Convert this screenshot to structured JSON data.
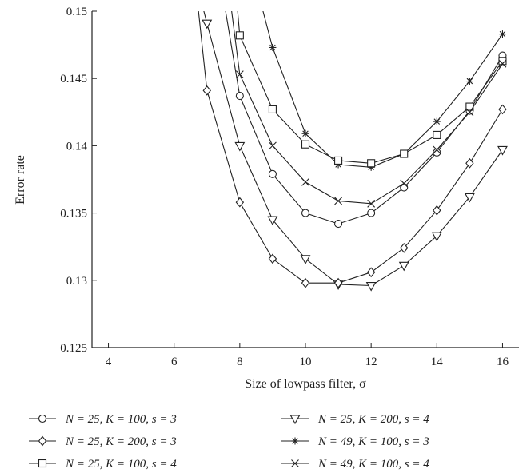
{
  "chart_data": {
    "type": "line",
    "title": "",
    "xlabel": "Size of lowpass filter, σ",
    "ylabel": "Error rate",
    "xlim": [
      3.5,
      16.5
    ],
    "ylim": [
      0.125,
      0.15
    ],
    "xticks": [
      4,
      6,
      8,
      10,
      12,
      14,
      16
    ],
    "yticks": [
      0.125,
      0.13,
      0.135,
      0.14,
      0.145,
      0.15
    ],
    "xtick_labels": [
      "4",
      "6",
      "8",
      "10",
      "12",
      "14",
      "16"
    ],
    "ytick_labels": [
      "0.125",
      "0.13",
      "0.135",
      "0.14",
      "0.145",
      "0.15"
    ],
    "grid": false,
    "legend_position": "bottom",
    "series": [
      {
        "name": "N = 25, K = 100, s = 3",
        "marker": "circle",
        "x": [
          7.5,
          8,
          9,
          10,
          11,
          12,
          13,
          14,
          15,
          16
        ],
        "y": [
          0.151,
          0.1437,
          0.1379,
          0.135,
          0.1342,
          0.135,
          0.1369,
          0.1395,
          0.1426,
          0.1467
        ]
      },
      {
        "name": "N = 25, K = 200, s = 4",
        "marker": "triangle-down",
        "x": [
          6.8,
          7,
          8,
          9,
          10,
          11,
          12,
          13,
          14,
          15,
          16
        ],
        "y": [
          0.151,
          0.1491,
          0.14,
          0.1345,
          0.1316,
          0.1297,
          0.1296,
          0.1311,
          0.1333,
          0.1362,
          0.1397
        ]
      },
      {
        "name": "N = 25, K = 200, s = 3",
        "marker": "diamond",
        "x": [
          6.7,
          7,
          8,
          9,
          10,
          11,
          12,
          13,
          14,
          15,
          16
        ],
        "y": [
          0.151,
          0.1441,
          0.1358,
          0.1316,
          0.1298,
          0.1298,
          0.1306,
          0.1324,
          0.1352,
          0.1387,
          0.1427
        ]
      },
      {
        "name": "N = 49, K = 100, s = 3",
        "marker": "asterisk",
        "x": [
          8.6,
          9,
          10,
          11,
          12,
          13,
          14,
          15,
          16
        ],
        "y": [
          0.151,
          0.1473,
          0.1409,
          0.1386,
          0.1384,
          0.1394,
          0.1418,
          0.1448,
          0.1483
        ]
      },
      {
        "name": "N = 25, K = 100, s = 4",
        "marker": "square",
        "x": [
          7.9,
          8,
          9,
          10,
          11,
          12,
          13,
          14,
          15,
          16
        ],
        "y": [
          0.151,
          0.1482,
          0.1427,
          0.1401,
          0.1389,
          0.1387,
          0.1394,
          0.1408,
          0.1429,
          0.1463
        ]
      },
      {
        "name": "N = 49, K = 100, s = 4",
        "marker": "x",
        "x": [
          7.7,
          8,
          9,
          10,
          11,
          12,
          13,
          14,
          15,
          16
        ],
        "y": [
          0.151,
          0.1453,
          0.14,
          0.1373,
          0.1359,
          0.1357,
          0.1372,
          0.1397,
          0.1425,
          0.1461
        ]
      }
    ]
  }
}
